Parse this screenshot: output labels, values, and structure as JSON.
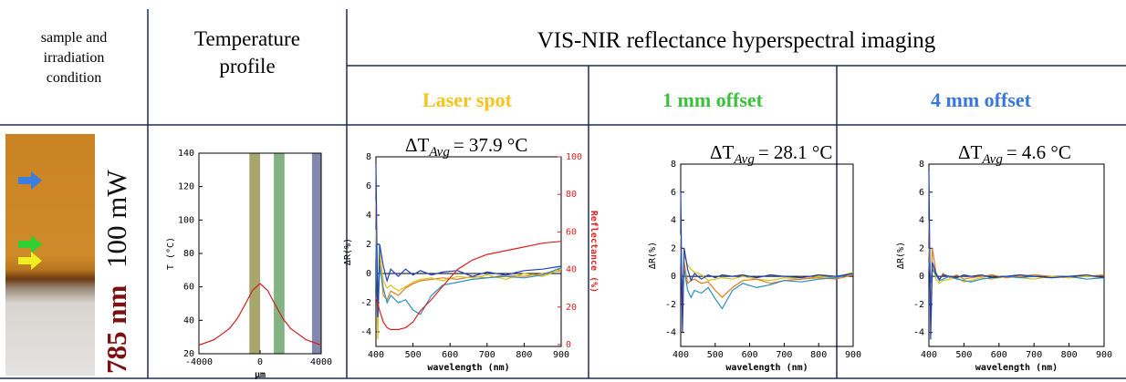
{
  "header": {
    "col1": [
      "sample and",
      "irradiation",
      "condition"
    ],
    "col2": [
      "Temperature",
      "profile"
    ],
    "col3": "VIS-NIR reflectance hyperspectral imaging",
    "subheaders": [
      {
        "text": "Laser spot",
        "color": "#f5c31a"
      },
      {
        "text": "1 mm offset",
        "color": "#3cc03c"
      },
      {
        "text": "4 mm offset",
        "color": "#3a78d8"
      }
    ]
  },
  "sample": {
    "wavelength": "785 nm",
    "power": "100 mW"
  },
  "chart_data": [
    {
      "type": "line",
      "xlabel": "μm",
      "ylabel": "T (°C)",
      "xlim": [
        -4000,
        4000
      ],
      "ylim": [
        20,
        140
      ],
      "xticks": [
        -4000,
        0,
        4000
      ],
      "yticks": [
        20,
        40,
        60,
        80,
        100,
        120,
        140
      ],
      "x": [
        -4000,
        -3000,
        -2000,
        -1500,
        -1000,
        -500,
        0,
        500,
        1000,
        1500,
        2000,
        3000,
        4000
      ],
      "values": [
        25.2,
        28.4,
        35.1,
        41,
        49.1,
        57.8,
        62,
        57.8,
        49.1,
        41,
        35.1,
        28.4,
        25.2
      ],
      "color": "#d02020",
      "bands": [
        {
          "x0": -700,
          "x1": 0,
          "color": "#8a8a3c"
        },
        {
          "x0": 900,
          "x1": 1600,
          "color": "#5a9a5a"
        },
        {
          "x0": 3400,
          "x1": 4000,
          "color": "#5a5f8f"
        }
      ]
    },
    {
      "type": "line",
      "annotation": {
        "symbol": "ΔT",
        "sub": "Avg",
        "text": "= 37.9  °C"
      },
      "xlabel": "wavelength (nm)",
      "ylabel": "ΔR(%)",
      "y2label": "Reflectance (%)",
      "xlim": [
        400,
        900
      ],
      "ylim": [
        -5,
        8
      ],
      "y2lim": [
        -1,
        100
      ],
      "xticks": [
        400,
        500,
        600,
        700,
        800,
        900
      ],
      "yticks": [
        -4,
        -2,
        0,
        2,
        4,
        6,
        8
      ],
      "y2ticks": [
        0,
        20,
        40,
        60,
        80,
        100
      ],
      "x": [
        400,
        405,
        410,
        420,
        430,
        440,
        460,
        480,
        500,
        520,
        550,
        580,
        620,
        660,
        700,
        750,
        800,
        850,
        900
      ],
      "series": [
        {
          "color": "#e07b1a",
          "values": [
            5,
            -2,
            1,
            -1.5,
            -1.8,
            -1.2,
            -1.5,
            -1,
            -0.7,
            -0.5,
            -0.4,
            -0.3,
            -0.4,
            -0.2,
            -0.3,
            -0.1,
            -0.2,
            0,
            0.2
          ]
        },
        {
          "color": "#d4c21a",
          "values": [
            3,
            -4.5,
            1.5,
            -0.5,
            -1,
            -0.8,
            -1.2,
            -0.9,
            -0.6,
            -0.4,
            -0.3,
            -0.5,
            -0.2,
            -0.3,
            -0.1,
            -0.4,
            0,
            -0.2,
            0.3
          ]
        },
        {
          "color": "#2a8fc0",
          "values": [
            2,
            -3,
            0.5,
            -1,
            -2,
            -1.5,
            -2,
            -1.8,
            -2.5,
            -2.8,
            -1.5,
            -0.8,
            -0.6,
            -0.4,
            -0.3,
            -0.2,
            -0.3,
            -0.1,
            0.4
          ]
        },
        {
          "color": "#1f3fbf",
          "values": [
            7.5,
            -3,
            2,
            0.5,
            -0.5,
            0.3,
            -0.2,
            0.3,
            -0.1,
            0.2,
            -0.1,
            0.1,
            0.2,
            -0.2,
            0.1,
            -0.1,
            0.2,
            0.3,
            0.5
          ]
        },
        {
          "color": "#e02020",
          "axis": "y2",
          "values": [
            25,
            22,
            18,
            12,
            9,
            8,
            8,
            9,
            12,
            18,
            24,
            31,
            40,
            45,
            48,
            50,
            52,
            54,
            55
          ]
        }
      ]
    },
    {
      "type": "line",
      "annotation": {
        "symbol": "ΔT",
        "sub": "Avg",
        "text": "= 28.1  °C"
      },
      "xlabel": "wavelength (nm)",
      "ylabel": "ΔR(%)",
      "xlim": [
        400,
        900
      ],
      "ylim": [
        -5,
        8
      ],
      "xticks": [
        400,
        500,
        600,
        700,
        800,
        900
      ],
      "yticks": [
        -4,
        -2,
        0,
        2,
        4,
        6,
        8
      ],
      "x": [
        400,
        405,
        410,
        420,
        430,
        440,
        460,
        480,
        500,
        520,
        550,
        580,
        620,
        660,
        700,
        750,
        800,
        850,
        900
      ],
      "series": [
        {
          "color": "#d4c21a",
          "values": [
            3,
            -2,
            1.5,
            0.8,
            0.5,
            0.3,
            0.1,
            -0.3,
            -0.2,
            -0.1,
            -0.2,
            0,
            -0.2,
            -0.3,
            -0.1,
            -0.2,
            0,
            -0.1,
            0.3
          ]
        },
        {
          "color": "#e07b1a",
          "values": [
            2,
            -3,
            1,
            -0.5,
            -0.3,
            -0.2,
            -0.5,
            -0.4,
            -1,
            -1.5,
            -0.8,
            -0.3,
            -0.2,
            -0.5,
            -0.3,
            -0.2,
            -0.1,
            -0.2,
            0.1
          ]
        },
        {
          "color": "#2a8fc0",
          "values": [
            1.5,
            -1,
            0.5,
            -1,
            -1.5,
            -1,
            -1.2,
            -0.8,
            -1.6,
            -2.3,
            -1,
            -0.5,
            -0.8,
            -0.6,
            -0.3,
            -0.4,
            -0.2,
            -0.1,
            0.2
          ]
        },
        {
          "color": "#1f3fbf",
          "values": [
            6,
            -4,
            2,
            0.5,
            -0.3,
            0.2,
            -0.2,
            0.1,
            -0.1,
            0.1,
            0,
            0.1,
            -0.1,
            0.1,
            0,
            -0.1,
            0.1,
            0,
            0.2
          ]
        }
      ]
    },
    {
      "type": "line",
      "annotation": {
        "symbol": "ΔT",
        "sub": "Avg",
        "text": "= 4.6  °C"
      },
      "xlabel": "wavelength (nm)",
      "ylabel": "ΔR(%)",
      "xlim": [
        400,
        900
      ],
      "ylim": [
        -5,
        8
      ],
      "xticks": [
        400,
        500,
        600,
        700,
        800,
        900
      ],
      "yticks": [
        -4,
        -2,
        0,
        2,
        4,
        6,
        8
      ],
      "x": [
        400,
        405,
        410,
        420,
        430,
        440,
        460,
        480,
        500,
        520,
        550,
        580,
        620,
        660,
        700,
        750,
        800,
        850,
        900
      ],
      "series": [
        {
          "color": "#e07b1a",
          "values": [
            4,
            -2,
            2,
            0.3,
            -0.3,
            0.2,
            -0.1,
            0.1,
            -0.2,
            -0.1,
            0,
            0.1,
            -0.1,
            0,
            0.1,
            0,
            -0.1,
            0,
            0.1
          ]
        },
        {
          "color": "#d4c21a",
          "values": [
            2,
            -1,
            1,
            -0.2,
            -0.5,
            -0.3,
            -0.2,
            -0.1,
            -0.4,
            -0.3,
            -0.1,
            -0.2,
            0,
            -0.1,
            -0.2,
            0,
            -0.1,
            0,
            -0.1
          ]
        },
        {
          "color": "#2a8fc0",
          "values": [
            1,
            -0.5,
            0.5,
            0.1,
            -0.3,
            -0.2,
            0,
            -0.2,
            -0.3,
            -0.4,
            -0.2,
            -0.1,
            0,
            -0.1,
            0,
            -0.1,
            0,
            -0.2,
            -0.1
          ]
        },
        {
          "color": "#1f3fbf",
          "values": [
            7.5,
            -4.5,
            1,
            0.2,
            -0.2,
            0.1,
            0,
            -0.1,
            0.1,
            0,
            0.1,
            -0.1,
            0,
            0.1,
            0,
            -0.1,
            0,
            0.1,
            -0.1
          ]
        }
      ]
    }
  ]
}
